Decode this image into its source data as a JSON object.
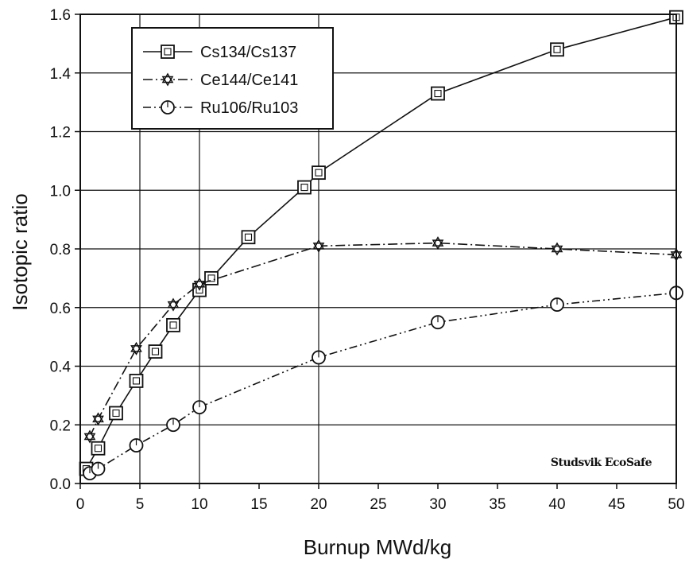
{
  "chart_data": {
    "type": "line",
    "title": "",
    "xlabel": "Burnup MWd/kg",
    "ylabel": "Isotopic ratio",
    "xlim": [
      0,
      50
    ],
    "ylim": [
      0,
      1.6
    ],
    "xticks": [
      "0",
      "5",
      "10",
      "15",
      "20",
      "25",
      "30",
      "35",
      "40",
      "45",
      "50"
    ],
    "yticks": [
      "0.0",
      "0.2",
      "0.4",
      "0.6",
      "0.8",
      "1.0",
      "1.2",
      "1.4",
      "1.6"
    ],
    "grid": "horizontal + vertical at x=5,10,20",
    "legend_position": "top-left",
    "series": [
      {
        "name": "Cs134/Cs137",
        "marker": "square",
        "line_style": "solid",
        "x": [
          0.5,
          1.5,
          3,
          4.7,
          6.3,
          7.8,
          10,
          11,
          14.1,
          18.8,
          20,
          30,
          40,
          50
        ],
        "y": [
          0.05,
          0.12,
          0.24,
          0.35,
          0.45,
          0.54,
          0.66,
          0.7,
          0.84,
          1.01,
          1.06,
          1.33,
          1.48,
          1.59
        ]
      },
      {
        "name": "Ce144/Ce141",
        "marker": "star",
        "line_style": "dash-dot",
        "x": [
          0.8,
          1.5,
          4.7,
          7.8,
          10,
          20,
          30,
          40,
          50
        ],
        "y": [
          0.16,
          0.22,
          0.46,
          0.61,
          0.68,
          0.81,
          0.82,
          0.8,
          0.78
        ]
      },
      {
        "name": "Ru106/Ru103",
        "marker": "circle",
        "line_style": "dash-dot-dot",
        "x": [
          0.8,
          1.5,
          4.7,
          7.8,
          10,
          20,
          30,
          40,
          50
        ],
        "y": [
          0.035,
          0.05,
          0.13,
          0.2,
          0.26,
          0.43,
          0.55,
          0.61,
          0.65
        ]
      }
    ],
    "watermark": "Studsvik EcoSafe"
  }
}
